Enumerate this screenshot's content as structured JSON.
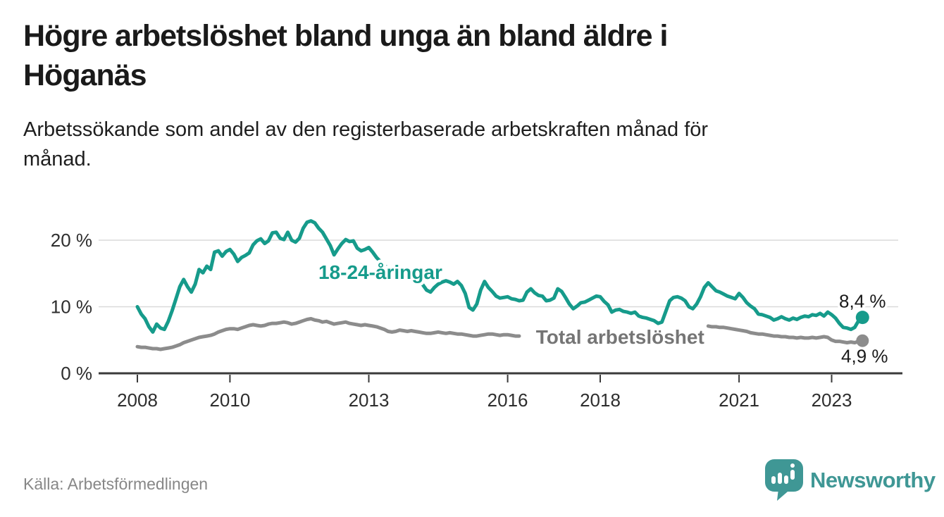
{
  "header": {
    "title_lines": [
      "Högre arbetslöshet bland unga än bland äldre i",
      "Höganäs"
    ],
    "subtitle_lines": [
      "Arbetssökande som andel av den registerbaserade arbetskraften månad för",
      "månad."
    ]
  },
  "footer": {
    "source": "Källa: Arbetsförmedlingen",
    "brand": {
      "name": "Newsworthy",
      "icon": "speech-bubble-bar-chart-icon",
      "color": "#3f9795"
    }
  },
  "chart_data": {
    "type": "line",
    "unit": "%",
    "frequency": "monthly",
    "x_start": {
      "year": 2008,
      "month": 1
    },
    "x_end": {
      "year": 2023,
      "month": 9
    },
    "x_ticks": [
      2008,
      2010,
      2013,
      2016,
      2018,
      2021,
      2023
    ],
    "y_ticks": [
      {
        "value": 20,
        "label": "20 %"
      },
      {
        "value": 10,
        "label": "10 %"
      },
      {
        "value": 0,
        "label": "0 %"
      }
    ],
    "ylim": [
      0,
      24
    ],
    "grid": true,
    "legend_position": "inline-labels",
    "series": [
      {
        "id": "youth",
        "name": "18-24-åringar",
        "color": "#169b8b",
        "label_color": "#169b8b",
        "end_label": "8,4 %",
        "end_value": 8.4,
        "label_anchor": {
          "year": 2013.25,
          "value": 14.2
        },
        "values": [
          10.0,
          8.9,
          8.2,
          7.0,
          6.2,
          7.4,
          6.8,
          6.6,
          7.8,
          9.4,
          11.2,
          13.0,
          14.1,
          13.0,
          12.2,
          13.4,
          15.6,
          15.1,
          16.1,
          15.6,
          18.2,
          18.4,
          17.6,
          18.3,
          18.6,
          17.9,
          16.8,
          17.4,
          17.7,
          18.1,
          19.3,
          19.9,
          20.2,
          19.5,
          19.9,
          21.1,
          21.2,
          20.3,
          20.1,
          21.2,
          20.0,
          19.7,
          20.3,
          21.8,
          22.7,
          22.9,
          22.6,
          21.8,
          21.2,
          20.2,
          19.2,
          17.8,
          18.7,
          19.5,
          20.1,
          19.8,
          19.9,
          18.8,
          18.4,
          18.6,
          18.9,
          18.2,
          17.4,
          16.8,
          16.2,
          15.8,
          15.9,
          15.4,
          15.1,
          15.3,
          14.8,
          14.5,
          14.2,
          13.8,
          13.3,
          12.5,
          12.2,
          12.9,
          13.4,
          13.7,
          13.9,
          13.7,
          13.4,
          13.8,
          13.2,
          12.0,
          9.9,
          9.5,
          10.4,
          12.5,
          13.8,
          12.9,
          12.3,
          11.6,
          11.3,
          11.4,
          11.5,
          11.2,
          11.1,
          10.9,
          11.0,
          12.2,
          12.7,
          12.1,
          11.7,
          11.6,
          10.9,
          11.0,
          11.3,
          12.7,
          12.3,
          11.4,
          10.4,
          9.7,
          10.1,
          10.6,
          10.7,
          11.0,
          11.3,
          11.6,
          11.5,
          10.8,
          10.3,
          9.2,
          9.5,
          9.6,
          9.3,
          9.2,
          9.0,
          9.2,
          8.6,
          8.4,
          8.3,
          8.1,
          7.9,
          7.5,
          7.7,
          9.3,
          10.9,
          11.4,
          11.5,
          11.3,
          10.9,
          10.0,
          9.7,
          10.4,
          11.5,
          12.9,
          13.6,
          13.0,
          12.4,
          12.2,
          11.9,
          11.6,
          11.4,
          11.2,
          12.0,
          11.4,
          10.6,
          10.1,
          9.7,
          8.9,
          8.8,
          8.6,
          8.4,
          8.0,
          8.2,
          8.5,
          8.2,
          8.0,
          8.3,
          8.1,
          8.4,
          8.6,
          8.5,
          8.8,
          8.7,
          9.0,
          8.6,
          9.2,
          8.8,
          8.3,
          7.5,
          6.9,
          6.8,
          6.6,
          6.9,
          7.9,
          8.4
        ]
      },
      {
        "id": "total",
        "name": "Total arbetslöshet",
        "color": "#8c8c8c",
        "label_color": "#757575",
        "end_label": "4,9 %",
        "end_value": 4.9,
        "label_anchor": {
          "year": 2018.43,
          "value": 4.45
        },
        "values": [
          4.0,
          3.9,
          3.9,
          3.8,
          3.7,
          3.7,
          3.6,
          3.7,
          3.8,
          3.9,
          4.1,
          4.3,
          4.6,
          4.8,
          5.0,
          5.2,
          5.4,
          5.5,
          5.6,
          5.7,
          5.9,
          6.2,
          6.4,
          6.6,
          6.7,
          6.7,
          6.6,
          6.8,
          7.0,
          7.2,
          7.3,
          7.2,
          7.1,
          7.2,
          7.4,
          7.5,
          7.5,
          7.6,
          7.7,
          7.6,
          7.4,
          7.5,
          7.7,
          7.9,
          8.1,
          8.2,
          8.0,
          7.9,
          7.7,
          7.8,
          7.6,
          7.4,
          7.5,
          7.6,
          7.7,
          7.5,
          7.4,
          7.3,
          7.2,
          7.3,
          7.2,
          7.1,
          7.0,
          6.8,
          6.6,
          6.3,
          6.2,
          6.3,
          6.5,
          6.4,
          6.3,
          6.4,
          6.3,
          6.2,
          6.1,
          6.0,
          6.0,
          6.1,
          6.2,
          6.1,
          6.0,
          6.1,
          6.0,
          5.9,
          5.9,
          5.8,
          5.7,
          5.6,
          5.6,
          5.7,
          5.8,
          5.9,
          5.9,
          5.8,
          5.7,
          5.8,
          5.8,
          5.7,
          5.6,
          5.6,
          null,
          null,
          null,
          null,
          null,
          null,
          null,
          null,
          null,
          null,
          null,
          null,
          null,
          null,
          null,
          null,
          null,
          null,
          null,
          null,
          null,
          null,
          null,
          null,
          null,
          null,
          null,
          null,
          null,
          null,
          null,
          null,
          null,
          null,
          null,
          null,
          null,
          null,
          null,
          null,
          null,
          null,
          null,
          null,
          null,
          null,
          null,
          null,
          7.1,
          7.0,
          7.0,
          6.9,
          6.9,
          6.8,
          6.7,
          6.6,
          6.5,
          6.4,
          6.3,
          6.1,
          6.0,
          5.9,
          5.9,
          5.8,
          5.7,
          5.6,
          5.6,
          5.5,
          5.5,
          5.4,
          5.4,
          5.3,
          5.4,
          5.3,
          5.3,
          5.4,
          5.3,
          5.4,
          5.5,
          5.4,
          5.0,
          4.8,
          4.8,
          4.7,
          4.6,
          4.7,
          4.6,
          4.8,
          4.9
        ]
      }
    ]
  }
}
